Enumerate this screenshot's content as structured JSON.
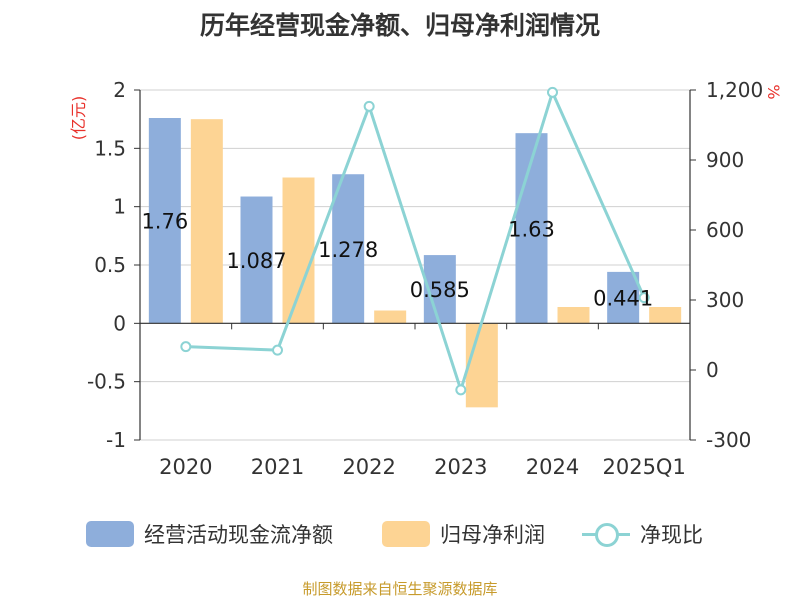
{
  "title": "历年经营现金净额、归母净利润情况",
  "source": "制图数据来自恒生聚源数据库",
  "legend": {
    "ocf": "经营活动现金流净额",
    "profit": "归母净利润",
    "ratio": "净现比"
  },
  "colors": {
    "ocf": "#8eaedb",
    "profit": "#fdd494",
    "ratio": "#8cd3d4",
    "axis_unit": "#e8312b"
  },
  "chart_data": {
    "type": "bar",
    "title": "历年经营现金净额、归母净利润情况",
    "categories": [
      "2020",
      "2021",
      "2022",
      "2023",
      "2024",
      "2025Q1"
    ],
    "left_axis": {
      "label": "(亿元)",
      "ylim": [
        -1,
        2
      ],
      "ticks": [
        2,
        1.5,
        1,
        0.5,
        0,
        -0.5,
        -1
      ],
      "tick_labels": [
        "2",
        "1.5",
        "1",
        "0.5",
        "0",
        "-0.5",
        "-1"
      ]
    },
    "right_axis": {
      "label": "%",
      "ylim": [
        -300,
        1200
      ],
      "ticks": [
        1200,
        900,
        600,
        300,
        0,
        -300
      ],
      "tick_labels": [
        "1,200",
        "900",
        "600",
        "300",
        "0",
        "-300"
      ]
    },
    "grid": true,
    "legend_position": "bottom",
    "series": [
      {
        "name": "经营活动现金流净额",
        "type": "bar",
        "axis": "left",
        "values": [
          1.76,
          1.087,
          1.278,
          0.585,
          1.63,
          0.441
        ],
        "data_labels": [
          "1.76",
          "1.087",
          "1.278",
          "0.585",
          "1.63",
          "0.441"
        ]
      },
      {
        "name": "归母净利润",
        "type": "bar",
        "axis": "left",
        "values": [
          1.75,
          1.25,
          0.11,
          -0.72,
          0.14,
          0.14
        ]
      },
      {
        "name": "净现比",
        "type": "line",
        "axis": "right",
        "values": [
          100,
          85,
          1130,
          -85,
          1190,
          310
        ]
      }
    ]
  }
}
